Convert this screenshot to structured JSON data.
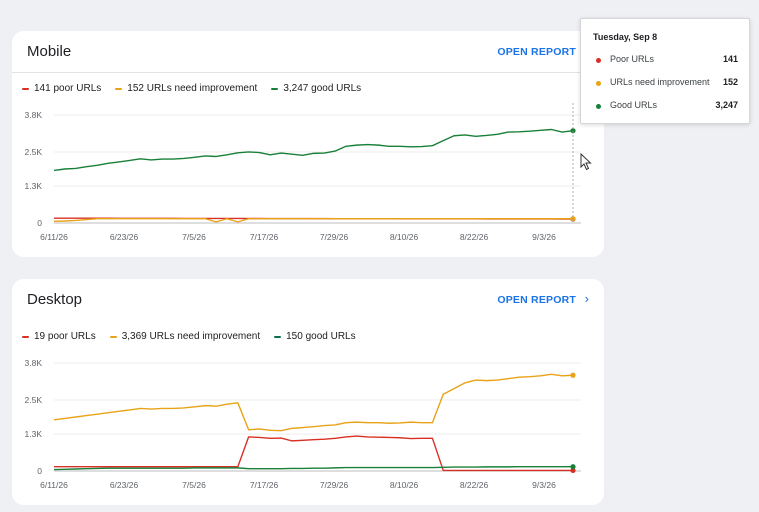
{
  "colors": {
    "poor": "#d93025",
    "improve": "#e8a317",
    "good": "#188038",
    "link": "#1a73e8"
  },
  "mobile": {
    "title": "Mobile",
    "open_report": "OPEN REPORT",
    "legend": [
      "141 poor URLs",
      "152 URLs need improvement",
      "3,247 good URLs"
    ]
  },
  "desktop": {
    "title": "Desktop",
    "open_report": "OPEN REPORT",
    "legend": [
      "19 poor URLs",
      "3,369 URLs need improvement",
      "150 good URLs"
    ]
  },
  "tooltip": {
    "date": "Tuesday, Sep 8",
    "rows": [
      {
        "label": "Poor URLs",
        "value": "141"
      },
      {
        "label": "URLs need improvement",
        "value": "152"
      },
      {
        "label": "Good URLs",
        "value": "3,247"
      }
    ]
  },
  "chart_data": [
    {
      "type": "line",
      "title": "Mobile",
      "x_ticks": [
        "6/11/26",
        "6/23/26",
        "7/5/26",
        "7/17/26",
        "7/29/26",
        "8/10/26",
        "8/22/26",
        "9/3/26"
      ],
      "y_ticks": [
        "0",
        "1.3K",
        "2.5K",
        "3.8K"
      ],
      "ylim": [
        0,
        3800
      ],
      "x_start": "2026-06-11",
      "x_end": "2026-09-08",
      "series": [
        {
          "name": "141 poor URLs",
          "color": "#d93025",
          "values": [
            170,
            170,
            170,
            168,
            168,
            168,
            166,
            166,
            165,
            165,
            165,
            163,
            162,
            162,
            160,
            160,
            160,
            160,
            158,
            158,
            156,
            156,
            155,
            155,
            154,
            154,
            153,
            152,
            152,
            151,
            150,
            150,
            149,
            149,
            148,
            148,
            147,
            147,
            146,
            146,
            145,
            145,
            144,
            144,
            143,
            142,
            142,
            141,
            141
          ]
        },
        {
          "name": "152 URLs need improvement",
          "color": "#e8a317",
          "values": [
            60,
            70,
            90,
            120,
            150,
            150,
            150,
            150,
            150,
            150,
            150,
            150,
            150,
            150,
            150,
            40,
            150,
            40,
            150,
            150,
            150,
            150,
            150,
            150,
            150,
            150,
            150,
            150,
            150,
            150,
            150,
            150,
            150,
            150,
            150,
            150,
            150,
            150,
            150,
            150,
            150,
            150,
            150,
            150,
            150,
            150,
            150,
            150,
            152
          ]
        },
        {
          "name": "3,247 good URLs",
          "color": "#188038",
          "values": [
            1850,
            1900,
            1920,
            1980,
            2030,
            2100,
            2150,
            2200,
            2260,
            2220,
            2250,
            2250,
            2270,
            2310,
            2360,
            2340,
            2400,
            2470,
            2500,
            2480,
            2400,
            2460,
            2420,
            2380,
            2450,
            2460,
            2530,
            2700,
            2740,
            2760,
            2740,
            2700,
            2700,
            2680,
            2690,
            2720,
            2900,
            3070,
            3100,
            3050,
            3080,
            3120,
            3200,
            3210,
            3230,
            3260,
            3290,
            3200,
            3247
          ]
        }
      ]
    },
    {
      "type": "line",
      "title": "Desktop",
      "x_ticks": [
        "6/11/26",
        "6/23/26",
        "7/5/26",
        "7/17/26",
        "7/29/26",
        "8/10/26",
        "8/22/26",
        "9/3/26"
      ],
      "y_ticks": [
        "0",
        "1.3K",
        "2.5K",
        "3.8K"
      ],
      "ylim": [
        0,
        3800
      ],
      "x_start": "2026-06-11",
      "x_end": "2026-09-08",
      "series": [
        {
          "name": "19 poor URLs",
          "color": "#d93025",
          "values": [
            150,
            150,
            150,
            150,
            150,
            150,
            150,
            150,
            150,
            150,
            150,
            150,
            150,
            150,
            150,
            150,
            150,
            150,
            1200,
            1180,
            1150,
            1160,
            1060,
            1080,
            1100,
            1120,
            1150,
            1200,
            1230,
            1200,
            1190,
            1180,
            1170,
            1140,
            1150,
            1150,
            20,
            20,
            19,
            19,
            19,
            19,
            19,
            19,
            19,
            19,
            19,
            19,
            19
          ]
        },
        {
          "name": "3,369 URLs need improvement",
          "color": "#e8a317",
          "values": [
            1800,
            1850,
            1900,
            1950,
            2000,
            2050,
            2100,
            2150,
            2200,
            2180,
            2200,
            2200,
            2220,
            2260,
            2300,
            2280,
            2350,
            2400,
            1450,
            1480,
            1430,
            1420,
            1500,
            1530,
            1560,
            1600,
            1620,
            1700,
            1720,
            1700,
            1700,
            1680,
            1690,
            1720,
            1700,
            1700,
            2700,
            2900,
            3100,
            3200,
            3180,
            3200,
            3250,
            3300,
            3320,
            3350,
            3400,
            3350,
            3369
          ]
        },
        {
          "name": "150 good URLs",
          "color": "#188038",
          "values": [
            50,
            60,
            70,
            80,
            90,
            100,
            100,
            100,
            100,
            100,
            100,
            100,
            100,
            110,
            110,
            110,
            110,
            110,
            80,
            80,
            80,
            80,
            90,
            90,
            100,
            100,
            110,
            120,
            120,
            120,
            120,
            120,
            120,
            120,
            120,
            120,
            130,
            140,
            140,
            140,
            145,
            145,
            145,
            150,
            150,
            150,
            150,
            150,
            150
          ]
        }
      ]
    }
  ]
}
